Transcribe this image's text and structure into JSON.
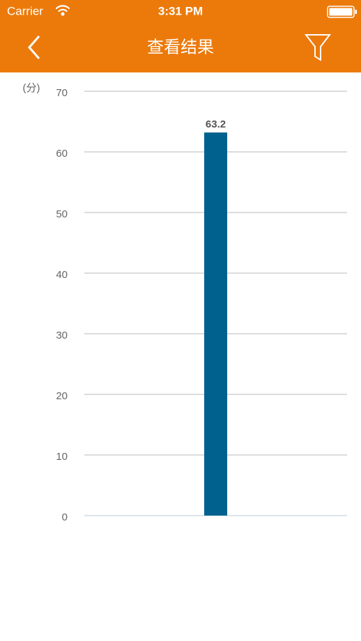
{
  "status_bar": {
    "carrier": "Carrier",
    "time": "3:31 PM"
  },
  "nav_bar": {
    "title": "查看结果"
  },
  "chart_data": {
    "type": "bar",
    "y_label": "(分)",
    "categories": [
      null
    ],
    "values": [
      63.2
    ],
    "color": "#00618f",
    "ylim": [
      0,
      70
    ],
    "yticks": [
      0,
      10,
      20,
      30,
      40,
      50,
      60,
      70
    ],
    "grid": true
  }
}
